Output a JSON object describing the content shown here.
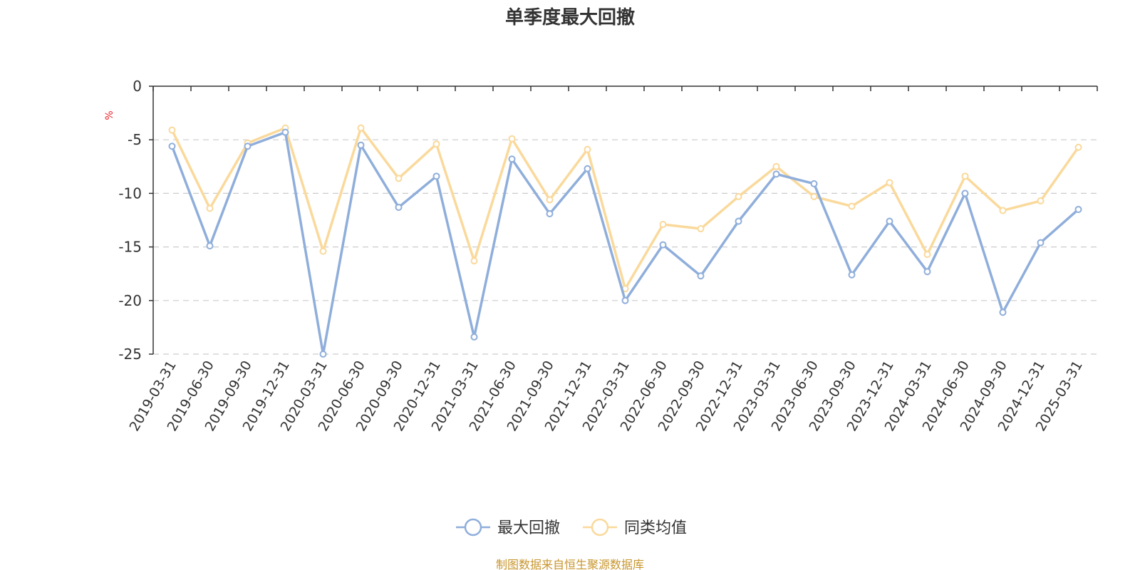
{
  "chart_data": {
    "type": "line",
    "title": "单季度最大回撤",
    "ylabel": "%",
    "ylim": [
      -25,
      0
    ],
    "yticks": [
      0,
      -5,
      -10,
      -15,
      -20,
      -25
    ],
    "grid": true,
    "legend_position": "bottom",
    "x": [
      "2019-03-31",
      "2019-06-30",
      "2019-09-30",
      "2019-12-31",
      "2020-03-31",
      "2020-06-30",
      "2020-09-30",
      "2020-12-31",
      "2021-03-31",
      "2021-06-30",
      "2021-09-30",
      "2021-12-31",
      "2022-03-31",
      "2022-06-30",
      "2022-09-30",
      "2022-12-31",
      "2023-03-31",
      "2023-06-30",
      "2023-09-30",
      "2023-12-31",
      "2024-03-31",
      "2024-06-30",
      "2024-09-30",
      "2024-12-31",
      "2025-03-31"
    ],
    "series": [
      {
        "name": "最大回撤",
        "color": "#8FAEDB",
        "values": [
          -5.6,
          -14.9,
          -5.6,
          -4.3,
          -25.0,
          -5.5,
          -11.3,
          -8.4,
          -23.4,
          -6.8,
          -11.9,
          -7.7,
          -20.0,
          -14.8,
          -17.7,
          -12.6,
          -8.2,
          -9.1,
          -17.6,
          -12.6,
          -17.3,
          -10.0,
          -21.1,
          -14.6,
          -11.5
        ]
      },
      {
        "name": "同类均值",
        "color": "#FAD99B",
        "values": [
          -4.1,
          -11.4,
          -5.3,
          -3.9,
          -15.4,
          -3.9,
          -8.6,
          -5.4,
          -16.3,
          -4.9,
          -10.6,
          -5.9,
          -18.9,
          -12.9,
          -13.3,
          -10.3,
          -7.5,
          -10.3,
          -11.2,
          -9.0,
          -15.7,
          -8.4,
          -11.6,
          -10.7,
          -5.7
        ]
      }
    ]
  },
  "source_text": "制图数据来自恒生聚源数据库",
  "colors": {
    "axis": "#333333",
    "grid": "#CCCCCC",
    "unit": "#E8232A",
    "source": "#C8962E",
    "marker_fill": "#ffffff"
  }
}
